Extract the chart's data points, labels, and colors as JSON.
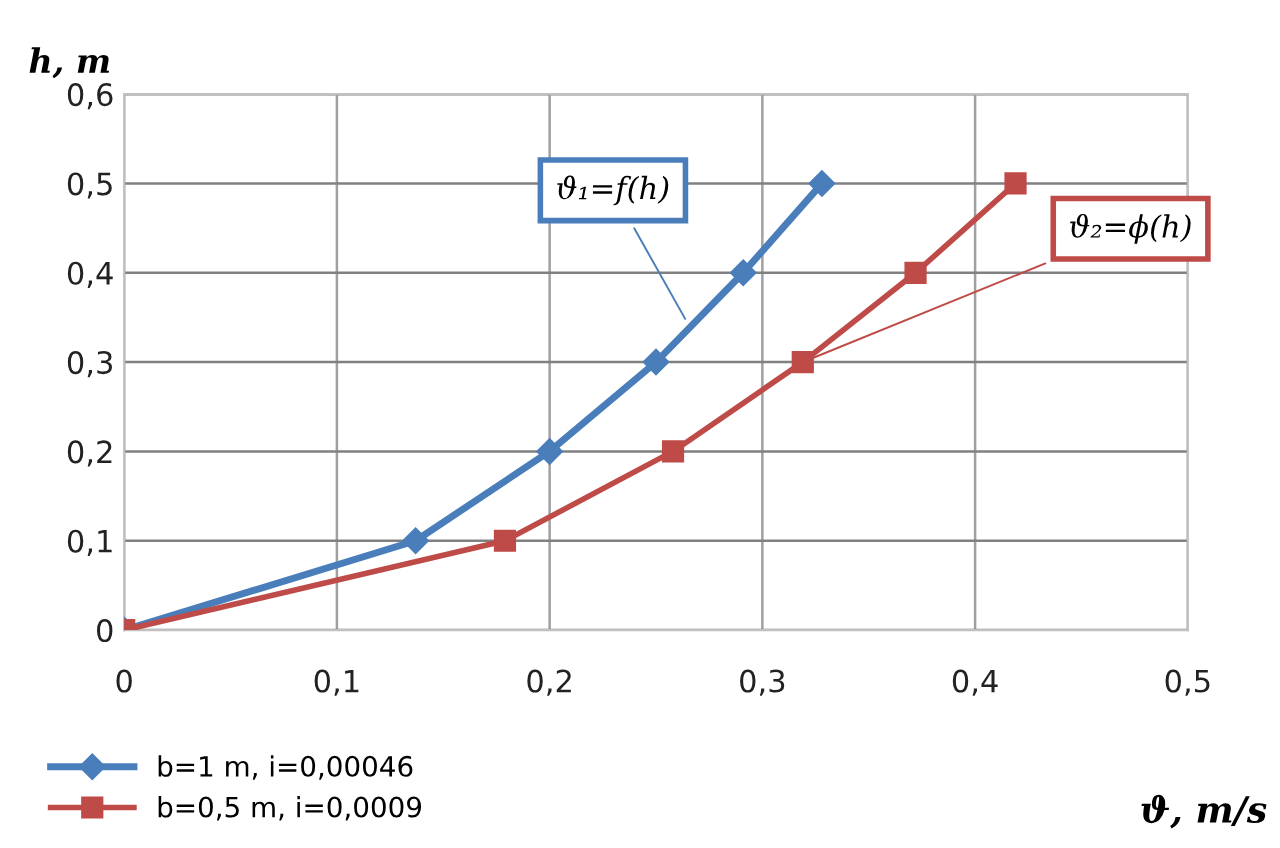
{
  "chart_data": {
    "type": "line",
    "xlabel": "ϑ, m/s",
    "ylabel": "h, m",
    "series": [
      {
        "name": "b=1 m, i=0,00046",
        "color": "#4a7ebb",
        "marker": "diamond",
        "x": [
          0,
          0.137,
          0.2,
          0.25,
          0.291,
          0.328
        ],
        "values": [
          0,
          0.1,
          0.2,
          0.3,
          0.4,
          0.5
        ]
      },
      {
        "name": "b=0,5 m, i=0,0009",
        "color": "#be4b48",
        "marker": "square",
        "x": [
          0,
          0.179,
          0.258,
          0.319,
          0.372,
          0.419
        ],
        "values": [
          0,
          0.1,
          0.2,
          0.3,
          0.4,
          0.5
        ]
      }
    ],
    "annotations": [
      {
        "text": "ϑ₁=f(h)",
        "x": 0.265,
        "y": 0.343
      },
      {
        "text": "ϑ₂=ϕ(h)",
        "x": 0.319,
        "y": 0.3
      }
    ],
    "xlim": [
      0,
      0.5
    ],
    "ylim": [
      0,
      0.6
    ],
    "xticks": [
      0,
      {
        "value": 0.1,
        "label": "0,1"
      },
      {
        "value": 0.2,
        "label": "0,2"
      },
      {
        "value": 0.3,
        "label": "0,3"
      },
      {
        "value": 0.4,
        "label": "0,4"
      },
      {
        "value": 0.5,
        "label": "0,5"
      }
    ],
    "yticks": [
      0,
      {
        "value": 0.1,
        "label": "0,1"
      },
      {
        "value": 0.2,
        "label": "0,2"
      },
      {
        "value": 0.3,
        "label": "0,3"
      },
      {
        "value": 0.4,
        "label": "0,4"
      },
      {
        "value": 0.5,
        "label": "0,5"
      },
      {
        "value": 0.6,
        "label": "0,6"
      }
    ],
    "grid": true,
    "legend": "bottom left"
  }
}
